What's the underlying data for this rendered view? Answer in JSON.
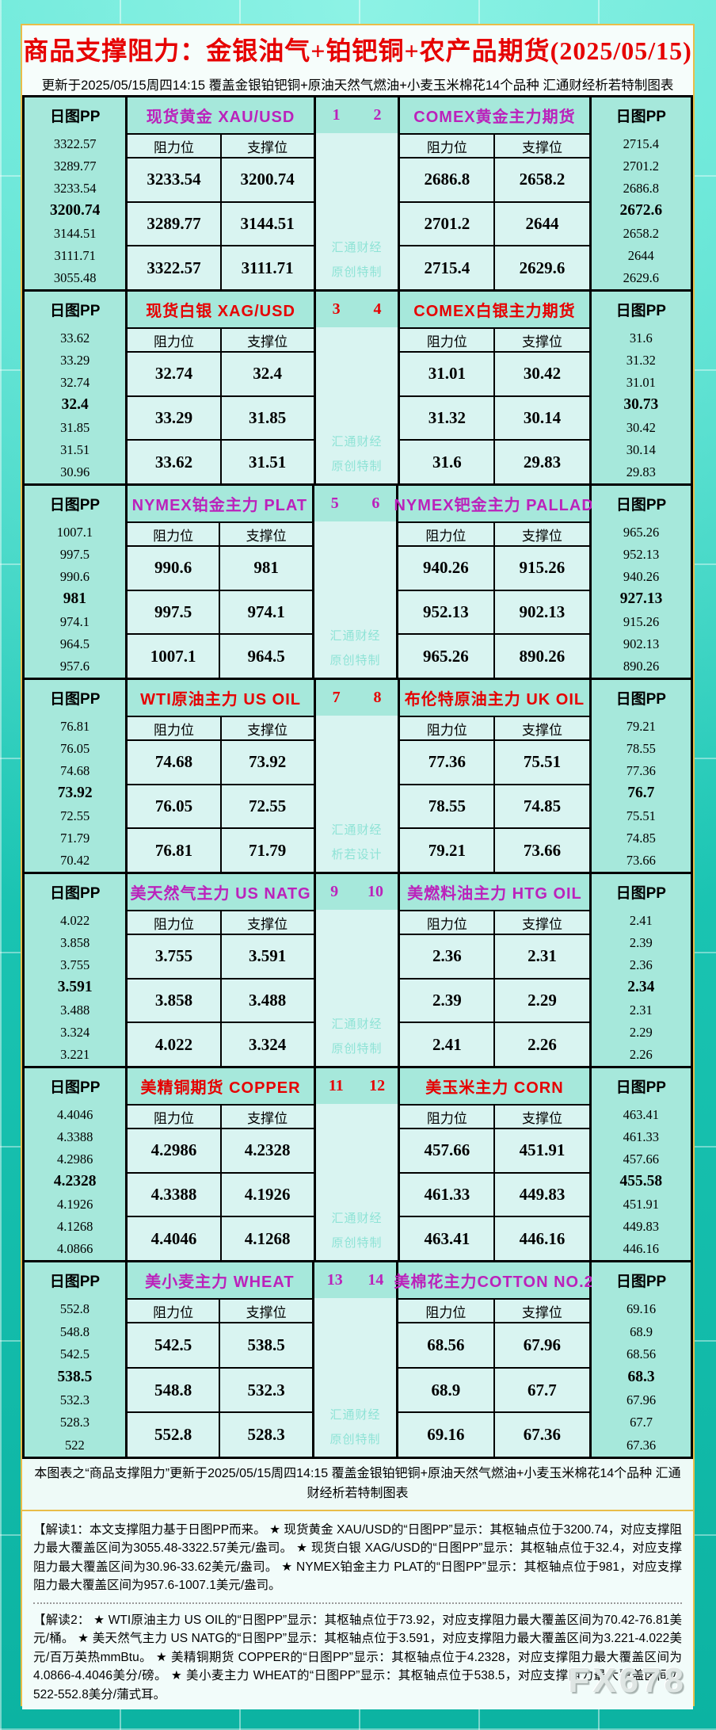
{
  "title": "商品支撑阻力：金银油气+铂钯铜+农产品期货(2025/05/15)",
  "subtitle": "更新于2025/05/15周四14:15 覆盖金银铂钯铜+原油天然气燃油+小麦玉米棉花14个品种 汇通财经析若特制图表",
  "labels": {
    "daily_pp": "日图PP",
    "resistance": "阻力位",
    "support": "支撑位"
  },
  "blocks": [
    {
      "index_left": "1",
      "index_right": "2",
      "accent": "#bb22bb",
      "watermark": [
        "汇通财经",
        "原创特制"
      ]
    },
    {
      "index_left": "3",
      "index_right": "4",
      "accent": "#e60000",
      "watermark": [
        "汇通财经",
        "原创特制"
      ]
    },
    {
      "index_left": "5",
      "index_right": "6",
      "accent": "#bb22bb",
      "watermark": [
        "汇通财经",
        "原创特制"
      ]
    },
    {
      "index_left": "7",
      "index_right": "8",
      "accent": "#e60000",
      "watermark": [
        "汇通财经",
        "析若设计"
      ]
    },
    {
      "index_left": "9",
      "index_right": "10",
      "accent": "#bb22bb",
      "watermark": [
        "汇通财经",
        "原创特制"
      ]
    },
    {
      "index_left": "11",
      "index_right": "12",
      "accent": "#e60000",
      "watermark": [
        "汇通财经",
        "原创特制"
      ]
    },
    {
      "index_left": "13",
      "index_right": "14",
      "accent": "#bb22bb",
      "watermark": [
        "汇通财经",
        "原创特制"
      ]
    }
  ],
  "chart_data": {
    "type": "table",
    "title": "商品支撑阻力：金银油气+铂钯铜+农产品期货(2025/05/15)",
    "updated": "2025/05/15周四14:15",
    "columns": [
      "阻力位",
      "支撑位"
    ],
    "instruments": [
      {
        "no": "1",
        "name": "现货黄金 XAU/USD",
        "pivot": "3200.74",
        "pp_levels": [
          "3322.57",
          "3289.77",
          "3233.54",
          "3200.74",
          "3144.51",
          "3111.71",
          "3055.48"
        ],
        "rows": [
          [
            "3233.54",
            "3200.74"
          ],
          [
            "3289.77",
            "3144.51"
          ],
          [
            "3322.57",
            "3111.71"
          ]
        ]
      },
      {
        "no": "2",
        "name": "COMEX黄金主力期货",
        "pivot": "2672.6",
        "pp_levels": [
          "2715.4",
          "2701.2",
          "2686.8",
          "2672.6",
          "2658.2",
          "2644",
          "2629.6"
        ],
        "rows": [
          [
            "2686.8",
            "2658.2"
          ],
          [
            "2701.2",
            "2644"
          ],
          [
            "2715.4",
            "2629.6"
          ]
        ]
      },
      {
        "no": "3",
        "name": "现货白银 XAG/USD",
        "pivot": "32.4",
        "pp_levels": [
          "33.62",
          "33.29",
          "32.74",
          "32.4",
          "31.85",
          "31.51",
          "30.96"
        ],
        "rows": [
          [
            "32.74",
            "32.4"
          ],
          [
            "33.29",
            "31.85"
          ],
          [
            "33.62",
            "31.51"
          ]
        ]
      },
      {
        "no": "4",
        "name": "COMEX白银主力期货",
        "pivot": "30.73",
        "pp_levels": [
          "31.6",
          "31.32",
          "31.01",
          "30.73",
          "30.42",
          "30.14",
          "29.83"
        ],
        "rows": [
          [
            "31.01",
            "30.42"
          ],
          [
            "31.32",
            "30.14"
          ],
          [
            "31.6",
            "29.83"
          ]
        ]
      },
      {
        "no": "5",
        "name": "NYMEX铂金主力 PLAT",
        "pivot": "981",
        "pp_levels": [
          "1007.1",
          "997.5",
          "990.6",
          "981",
          "974.1",
          "964.5",
          "957.6"
        ],
        "rows": [
          [
            "990.6",
            "981"
          ],
          [
            "997.5",
            "974.1"
          ],
          [
            "1007.1",
            "964.5"
          ]
        ]
      },
      {
        "no": "6",
        "name": "NYMEX钯金主力 PALLAD",
        "pivot": "927.13",
        "pp_levels": [
          "965.26",
          "952.13",
          "940.26",
          "927.13",
          "915.26",
          "902.13",
          "890.26"
        ],
        "rows": [
          [
            "940.26",
            "915.26"
          ],
          [
            "952.13",
            "902.13"
          ],
          [
            "965.26",
            "890.26"
          ]
        ]
      },
      {
        "no": "7",
        "name": "WTI原油主力 US OIL",
        "pivot": "73.92",
        "pp_levels": [
          "76.81",
          "76.05",
          "74.68",
          "73.92",
          "72.55",
          "71.79",
          "70.42"
        ],
        "rows": [
          [
            "74.68",
            "73.92"
          ],
          [
            "76.05",
            "72.55"
          ],
          [
            "76.81",
            "71.79"
          ]
        ]
      },
      {
        "no": "8",
        "name": "布伦特原油主力 UK OIL",
        "pivot": "76.7",
        "pp_levels": [
          "79.21",
          "78.55",
          "77.36",
          "76.7",
          "75.51",
          "74.85",
          "73.66"
        ],
        "rows": [
          [
            "77.36",
            "75.51"
          ],
          [
            "78.55",
            "74.85"
          ],
          [
            "79.21",
            "73.66"
          ]
        ]
      },
      {
        "no": "9",
        "name": "美天然气主力 US NATG",
        "pivot": "3.591",
        "pp_levels": [
          "4.022",
          "3.858",
          "3.755",
          "3.591",
          "3.488",
          "3.324",
          "3.221"
        ],
        "rows": [
          [
            "3.755",
            "3.591"
          ],
          [
            "3.858",
            "3.488"
          ],
          [
            "4.022",
            "3.324"
          ]
        ]
      },
      {
        "no": "10",
        "name": "美燃料油主力 HTG OIL",
        "pivot": "2.34",
        "pp_levels": [
          "2.41",
          "2.39",
          "2.36",
          "2.34",
          "2.31",
          "2.29",
          "2.26"
        ],
        "rows": [
          [
            "2.36",
            "2.31"
          ],
          [
            "2.39",
            "2.29"
          ],
          [
            "2.41",
            "2.26"
          ]
        ]
      },
      {
        "no": "11",
        "name": "美精铜期货 COPPER",
        "pivot": "4.2328",
        "pp_levels": [
          "4.4046",
          "4.3388",
          "4.2986",
          "4.2328",
          "4.1926",
          "4.1268",
          "4.0866"
        ],
        "rows": [
          [
            "4.2986",
            "4.2328"
          ],
          [
            "4.3388",
            "4.1926"
          ],
          [
            "4.4046",
            "4.1268"
          ]
        ]
      },
      {
        "no": "12",
        "name": "美玉米主力 CORN",
        "pivot": "455.58",
        "pp_levels": [
          "463.41",
          "461.33",
          "457.66",
          "455.58",
          "451.91",
          "449.83",
          "446.16"
        ],
        "rows": [
          [
            "457.66",
            "451.91"
          ],
          [
            "461.33",
            "449.83"
          ],
          [
            "463.41",
            "446.16"
          ]
        ]
      },
      {
        "no": "13",
        "name": "美小麦主力 WHEAT",
        "pivot": "538.5",
        "pp_levels": [
          "552.8",
          "548.8",
          "542.5",
          "538.5",
          "532.3",
          "528.3",
          "522"
        ],
        "rows": [
          [
            "542.5",
            "538.5"
          ],
          [
            "548.8",
            "532.3"
          ],
          [
            "552.8",
            "528.3"
          ]
        ]
      },
      {
        "no": "14",
        "name": "美棉花主力COTTON NO.2",
        "pivot": "68.3",
        "pp_levels": [
          "69.16",
          "68.9",
          "68.56",
          "68.3",
          "67.96",
          "67.7",
          "67.36"
        ],
        "rows": [
          [
            "68.56",
            "67.96"
          ],
          [
            "68.9",
            "67.7"
          ],
          [
            "69.16",
            "67.36"
          ]
        ]
      }
    ]
  },
  "footer_note": "本图表之“商品支撑阻力”更新于2025/05/15周四14:15 覆盖金银铂钯铜+原油天然气燃油+小麦玉米棉花14个品种 汇通财经析若特制图表",
  "interpretation1": "【解读1：本文支撑阻力基于日图PP而来。 ★ 现货黄金 XAU/USD的“日图PP”显示：其枢轴点位于3200.74，对应支撑阻力最大覆盖区间为3055.48-3322.57美元/盎司。 ★ 现货白银 XAG/USD的“日图PP”显示：其枢轴点位于32.4，对应支撑阻力最大覆盖区间为30.96-33.62美元/盎司。 ★ NYMEX铂金主力 PLAT的“日图PP”显示：其枢轴点位于981，对应支撑阻力最大覆盖区间为957.6-1007.1美元/盎司。",
  "interpretation2": "【解读2： ★ WTI原油主力 US OIL的“日图PP”显示：其枢轴点位于73.92，对应支撑阻力最大覆盖区间为70.42-76.81美元/桶。 ★ 美天然气主力 US NATG的“日图PP”显示：其枢轴点位于3.591，对应支撑阻力最大覆盖区间为3.221-4.022美元/百万英热mmBtu。 ★ 美精铜期货 COPPER的“日图PP”显示：其枢轴点位于4.2328，对应支撑阻力最大覆盖区间为4.0866-4.4046美分/磅。 ★ 美小麦主力 WHEAT的“日图PP”显示：其枢轴点位于538.5，对应支撑阻力最大覆盖区间为522-552.8美分/蒲式耳。",
  "brand": "FX678"
}
